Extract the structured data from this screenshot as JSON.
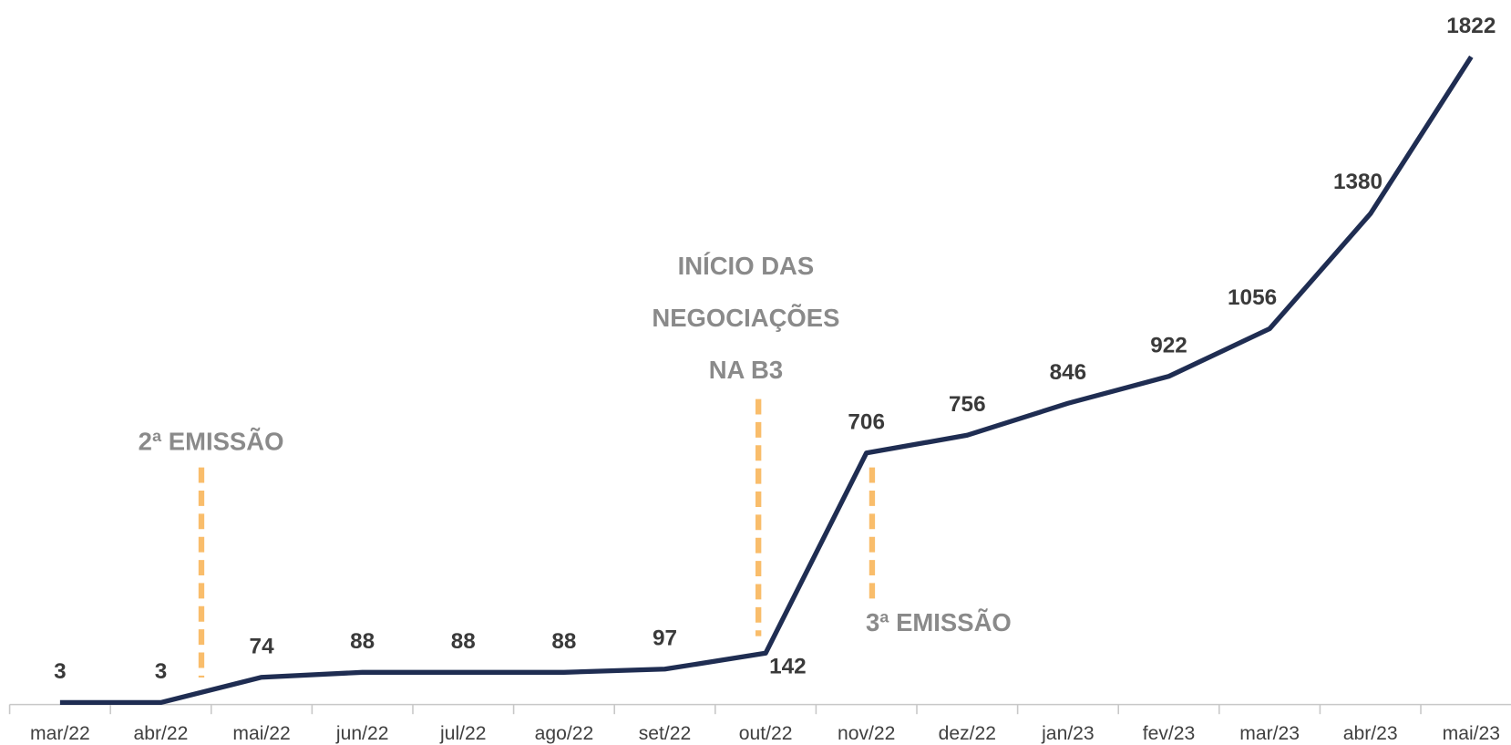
{
  "chart_data": {
    "type": "line",
    "categories": [
      "mar/22",
      "abr/22",
      "mai/22",
      "jun/22",
      "jul/22",
      "ago/22",
      "set/22",
      "out/22",
      "nov/22",
      "dez/22",
      "jan/23",
      "fev/23",
      "mar/23",
      "abr/23",
      "mai/23"
    ],
    "series": [
      {
        "color": "#1f2d52",
        "values": [
          3,
          3,
          74,
          88,
          88,
          88,
          97,
          142,
          706,
          756,
          846,
          922,
          1056,
          1380,
          1822
        ]
      }
    ],
    "annotations": [
      {
        "lines": [
          "2ª EMISSÃO"
        ]
      },
      {
        "lines": [
          "INÍCIO DAS",
          "NEGOCIAÇÕES",
          "NA B3"
        ]
      },
      {
        "lines": [
          "3ª EMISSÃO"
        ]
      }
    ],
    "annotation_color": "#f9bd6b"
  }
}
